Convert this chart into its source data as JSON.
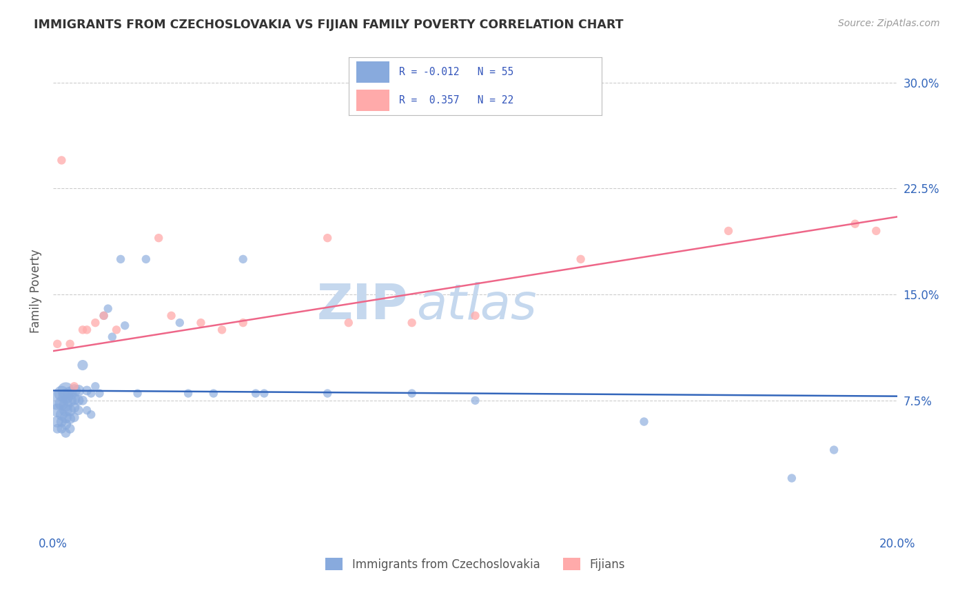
{
  "title": "IMMIGRANTS FROM CZECHOSLOVAKIA VS FIJIAN FAMILY POVERTY CORRELATION CHART",
  "source": "Source: ZipAtlas.com",
  "ylabel": "Family Poverty",
  "xlim": [
    0.0,
    0.2
  ],
  "ylim": [
    -0.02,
    0.325
  ],
  "yticks": [
    0.075,
    0.15,
    0.225,
    0.3
  ],
  "ytick_labels": [
    "7.5%",
    "15.0%",
    "22.5%",
    "30.0%"
  ],
  "xticks": [
    0.0,
    0.05,
    0.1,
    0.15,
    0.2
  ],
  "xtick_labels": [
    "0.0%",
    "",
    "",
    "",
    "20.0%"
  ],
  "blue_R": -0.012,
  "blue_N": 55,
  "pink_R": 0.357,
  "pink_N": 22,
  "blue_color": "#88AADD",
  "pink_color": "#FFAAAA",
  "blue_line_color": "#3366BB",
  "pink_line_color": "#EE6688",
  "watermark_zip": "ZIP",
  "watermark_atlas": "atlas",
  "watermark_color": "#C5D8EE",
  "legend_label_blue": "Immigrants from Czechoslovakia",
  "legend_label_pink": "Fijians",
  "blue_scatter_x": [
    0.001,
    0.001,
    0.001,
    0.001,
    0.002,
    0.002,
    0.002,
    0.002,
    0.002,
    0.003,
    0.003,
    0.003,
    0.003,
    0.003,
    0.003,
    0.003,
    0.004,
    0.004,
    0.004,
    0.004,
    0.004,
    0.005,
    0.005,
    0.005,
    0.005,
    0.006,
    0.006,
    0.006,
    0.007,
    0.007,
    0.008,
    0.008,
    0.009,
    0.009,
    0.01,
    0.011,
    0.012,
    0.013,
    0.014,
    0.016,
    0.017,
    0.02,
    0.022,
    0.03,
    0.032,
    0.038,
    0.045,
    0.048,
    0.05,
    0.065,
    0.085,
    0.1,
    0.14,
    0.175,
    0.185
  ],
  "blue_scatter_y": [
    0.075,
    0.068,
    0.06,
    0.055,
    0.08,
    0.073,
    0.065,
    0.06,
    0.055,
    0.082,
    0.078,
    0.072,
    0.068,
    0.063,
    0.058,
    0.052,
    0.08,
    0.075,
    0.068,
    0.062,
    0.055,
    0.082,
    0.076,
    0.07,
    0.063,
    0.082,
    0.075,
    0.068,
    0.1,
    0.075,
    0.082,
    0.068,
    0.08,
    0.065,
    0.085,
    0.08,
    0.135,
    0.14,
    0.12,
    0.175,
    0.128,
    0.08,
    0.175,
    0.13,
    0.08,
    0.08,
    0.175,
    0.08,
    0.08,
    0.08,
    0.08,
    0.075,
    0.06,
    0.02,
    0.04
  ],
  "blue_scatter_sizes": [
    400,
    200,
    150,
    100,
    250,
    200,
    150,
    120,
    100,
    300,
    250,
    200,
    180,
    150,
    120,
    100,
    200,
    180,
    150,
    120,
    100,
    180,
    150,
    120,
    100,
    150,
    120,
    100,
    120,
    100,
    100,
    80,
    80,
    80,
    80,
    80,
    80,
    80,
    80,
    80,
    80,
    80,
    80,
    80,
    80,
    80,
    80,
    80,
    80,
    80,
    80,
    80,
    80,
    80,
    80
  ],
  "pink_scatter_x": [
    0.001,
    0.002,
    0.004,
    0.005,
    0.007,
    0.008,
    0.01,
    0.012,
    0.015,
    0.025,
    0.028,
    0.035,
    0.04,
    0.045,
    0.065,
    0.07,
    0.085,
    0.1,
    0.125,
    0.16,
    0.19,
    0.195
  ],
  "pink_scatter_y": [
    0.115,
    0.245,
    0.115,
    0.085,
    0.125,
    0.125,
    0.13,
    0.135,
    0.125,
    0.19,
    0.135,
    0.13,
    0.125,
    0.13,
    0.19,
    0.13,
    0.13,
    0.135,
    0.175,
    0.195,
    0.2,
    0.195
  ],
  "pink_scatter_sizes": [
    80,
    80,
    80,
    80,
    80,
    80,
    80,
    80,
    80,
    80,
    80,
    80,
    80,
    80,
    80,
    80,
    80,
    80,
    80,
    80,
    80,
    80
  ],
  "blue_line_x": [
    0.0,
    0.2
  ],
  "blue_line_y": [
    0.082,
    0.078
  ],
  "pink_line_x": [
    0.0,
    0.2
  ],
  "pink_line_y": [
    0.11,
    0.205
  ],
  "grid_color": "#CCCCCC",
  "bg_color": "#FFFFFF"
}
